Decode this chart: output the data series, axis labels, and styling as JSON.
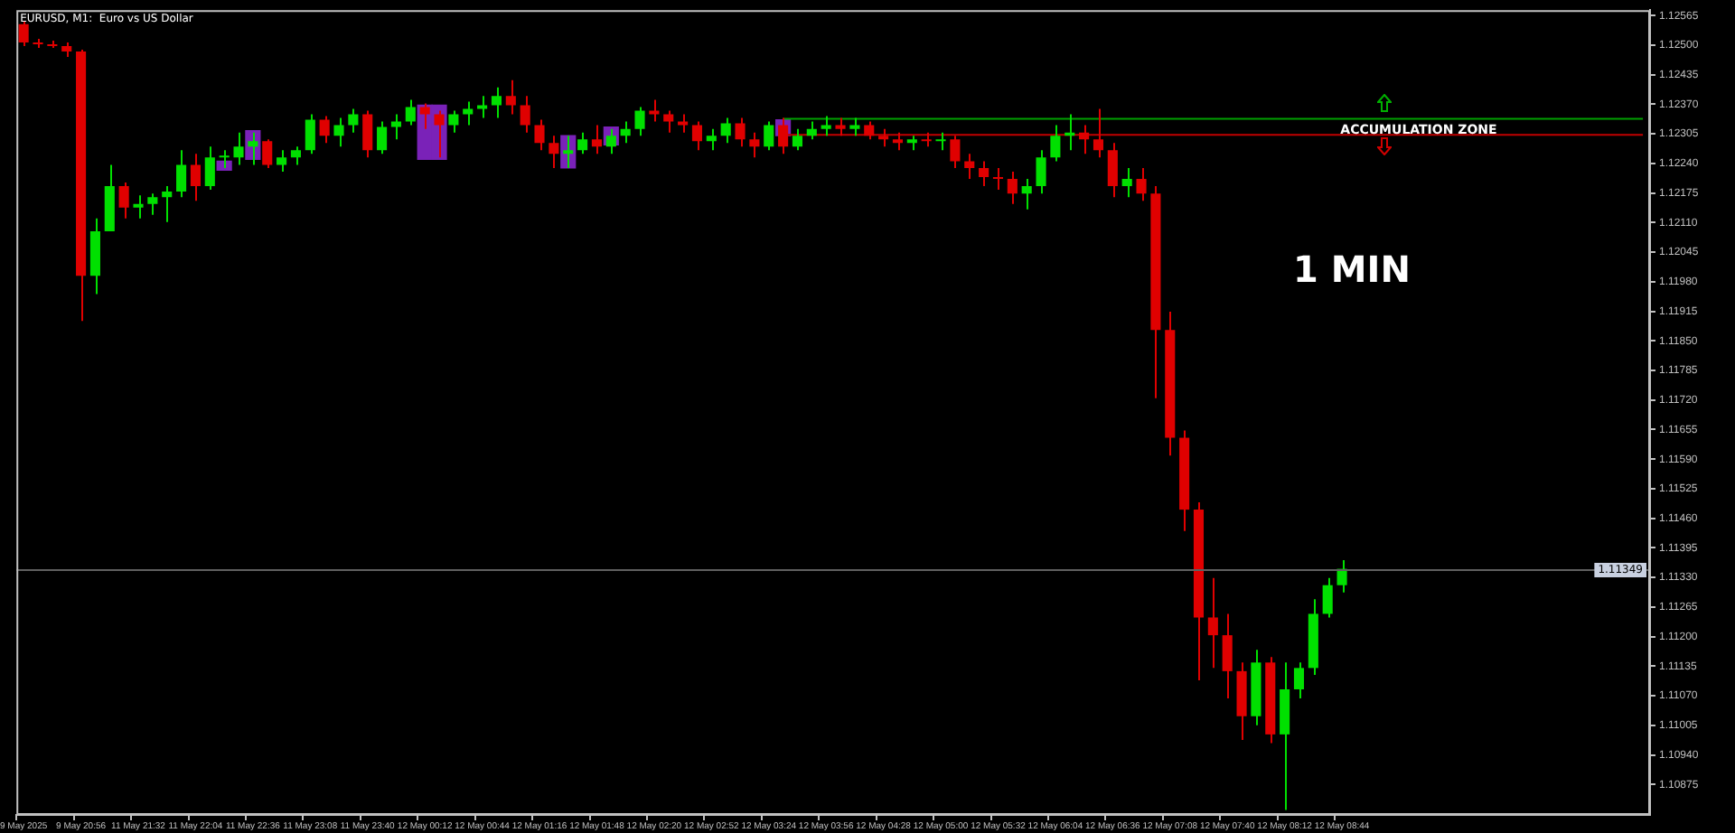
{
  "chart_data": {
    "type": "candlestick",
    "title": "EURUSD, M1:  Euro vs US Dollar",
    "categories": [
      "9 May 2025",
      null,
      null,
      null,
      "9 May 20:56",
      null,
      null,
      null,
      "11 May 21:32",
      null,
      null,
      null,
      "11 May 22:04",
      null,
      null,
      null,
      "11 May 22:36",
      null,
      null,
      null,
      "11 May 23:08",
      null,
      null,
      null,
      "11 May 23:40",
      null,
      null,
      null,
      "12 May 00:12",
      null,
      null,
      null,
      "12 May 00:44",
      null,
      null,
      null,
      "12 May 01:16",
      null,
      null,
      null,
      "12 May 01:48",
      null,
      null,
      null,
      "12 May 02:20",
      null,
      null,
      null,
      "12 May 02:52",
      null,
      null,
      null,
      "12 May 03:24",
      null,
      null,
      null,
      "12 May 03:56",
      null,
      null,
      null,
      "12 May 04:28",
      null,
      null,
      null,
      "12 May 05:00",
      null,
      null,
      null,
      "12 May 05:32",
      null,
      null,
      null,
      "12 May 06:04",
      null,
      null,
      null,
      "12 May 06:36",
      null,
      null,
      null,
      "12 May 07:08",
      null,
      null,
      null,
      "12 May 07:40",
      null,
      null,
      null,
      "12 May 08:12",
      null,
      null,
      null,
      "12 May 08:44",
      null,
      null,
      null,
      null,
      null,
      null,
      null,
      null,
      null,
      null,
      null,
      null,
      null,
      null,
      null,
      null,
      null,
      null,
      null,
      null,
      null
    ],
    "ohlc": [
      [
        1.12546,
        1.12553,
        1.12498,
        1.12506
      ],
      [
        1.12506,
        1.12514,
        1.12494,
        1.12502
      ],
      [
        1.12502,
        1.1251,
        1.12494,
        1.12498
      ],
      [
        1.12498,
        1.12506,
        1.12474,
        1.12486
      ],
      [
        1.12486,
        1.1249,
        1.11894,
        1.11993
      ],
      [
        1.11993,
        1.12119,
        1.11953,
        1.12091
      ],
      [
        1.12091,
        1.12237,
        1.12091,
        1.1219
      ],
      [
        1.1219,
        1.12198,
        1.12119,
        1.12143
      ],
      [
        1.12143,
        1.1217,
        1.12119,
        1.12151
      ],
      [
        1.12151,
        1.12174,
        1.12127,
        1.12166
      ],
      [
        1.12166,
        1.1219,
        1.12111,
        1.12178
      ],
      [
        1.12178,
        1.12269,
        1.12166,
        1.12237
      ],
      [
        1.12237,
        1.12261,
        1.12158,
        1.1219
      ],
      [
        1.1219,
        1.12277,
        1.12182,
        1.12253
      ],
      [
        1.12253,
        1.12269,
        1.1223,
        1.12253
      ],
      [
        1.12253,
        1.12308,
        1.12237,
        1.12277
      ],
      [
        1.12277,
        1.12308,
        1.12237,
        1.12289
      ],
      [
        1.12289,
        1.12293,
        1.1223,
        1.12237
      ],
      [
        1.12237,
        1.12269,
        1.12222,
        1.12253
      ],
      [
        1.12253,
        1.12277,
        1.12237,
        1.12269
      ],
      [
        1.12269,
        1.12348,
        1.12261,
        1.12336
      ],
      [
        1.12336,
        1.12344,
        1.12285,
        1.12301
      ],
      [
        1.12301,
        1.1234,
        1.12277,
        1.12324
      ],
      [
        1.12324,
        1.1236,
        1.12308,
        1.12348
      ],
      [
        1.12348,
        1.12356,
        1.12253,
        1.12269
      ],
      [
        1.12269,
        1.12332,
        1.12261,
        1.1232
      ],
      [
        1.1232,
        1.12348,
        1.12293,
        1.12332
      ],
      [
        1.12332,
        1.1238,
        1.12324,
        1.12364
      ],
      [
        1.12364,
        1.12372,
        1.12316,
        1.12348
      ],
      [
        1.12348,
        1.12356,
        1.12253,
        1.12324
      ],
      [
        1.12324,
        1.12356,
        1.12308,
        1.12348
      ],
      [
        1.12348,
        1.12376,
        1.12324,
        1.1236
      ],
      [
        1.1236,
        1.12388,
        1.1234,
        1.12368
      ],
      [
        1.12368,
        1.12407,
        1.1234,
        1.12388
      ],
      [
        1.12388,
        1.12423,
        1.12348,
        1.12368
      ],
      [
        1.12368,
        1.12388,
        1.12308,
        1.12324
      ],
      [
        1.12324,
        1.12336,
        1.12269,
        1.12285
      ],
      [
        1.12285,
        1.12301,
        1.1223,
        1.12261
      ],
      [
        1.12261,
        1.12301,
        1.1223,
        1.12269
      ],
      [
        1.12269,
        1.12308,
        1.12261,
        1.12293
      ],
      [
        1.12293,
        1.12324,
        1.12261,
        1.12277
      ],
      [
        1.12277,
        1.12316,
        1.12261,
        1.12301
      ],
      [
        1.12301,
        1.12332,
        1.12285,
        1.12316
      ],
      [
        1.12316,
        1.12364,
        1.12301,
        1.12356
      ],
      [
        1.12356,
        1.1238,
        1.12332,
        1.12348
      ],
      [
        1.12348,
        1.12356,
        1.12308,
        1.12332
      ],
      [
        1.12332,
        1.12348,
        1.12308,
        1.12324
      ],
      [
        1.12324,
        1.12332,
        1.12269,
        1.12289
      ],
      [
        1.12289,
        1.12316,
        1.12269,
        1.12301
      ],
      [
        1.12301,
        1.1234,
        1.12285,
        1.12328
      ],
      [
        1.12328,
        1.1234,
        1.12277,
        1.12293
      ],
      [
        1.12293,
        1.12308,
        1.12253,
        1.12277
      ],
      [
        1.12277,
        1.12332,
        1.12269,
        1.12324
      ],
      [
        1.12324,
        1.1234,
        1.12261,
        1.12277
      ],
      [
        1.12277,
        1.12316,
        1.12269,
        1.12301
      ],
      [
        1.12301,
        1.12332,
        1.12293,
        1.12316
      ],
      [
        1.12316,
        1.12344,
        1.12301,
        1.12324
      ],
      [
        1.12324,
        1.1234,
        1.12301,
        1.12316
      ],
      [
        1.12316,
        1.1234,
        1.12301,
        1.12324
      ],
      [
        1.12324,
        1.12332,
        1.12293,
        1.12301
      ],
      [
        1.12301,
        1.12316,
        1.12277,
        1.12293
      ],
      [
        1.12293,
        1.12308,
        1.12269,
        1.12285
      ],
      [
        1.12285,
        1.12301,
        1.12269,
        1.12293
      ],
      [
        1.12293,
        1.12308,
        1.12277,
        1.12289
      ],
      [
        1.12289,
        1.12308,
        1.12269,
        1.12293
      ],
      [
        1.12293,
        1.12301,
        1.1223,
        1.12245
      ],
      [
        1.12245,
        1.12261,
        1.12206,
        1.1223
      ],
      [
        1.1223,
        1.12245,
        1.1219,
        1.1221
      ],
      [
        1.1221,
        1.1223,
        1.12182,
        1.12206
      ],
      [
        1.12206,
        1.12222,
        1.12151,
        1.12174
      ],
      [
        1.12174,
        1.12206,
        1.12139,
        1.1219
      ],
      [
        1.1219,
        1.12269,
        1.12174,
        1.12253
      ],
      [
        1.12253,
        1.12324,
        1.12245,
        1.12301
      ],
      [
        1.12301,
        1.12348,
        1.12269,
        1.12308
      ],
      [
        1.12308,
        1.12324,
        1.12261,
        1.12293
      ],
      [
        1.12293,
        1.1236,
        1.12253,
        1.12269
      ],
      [
        1.12269,
        1.12285,
        1.12166,
        1.1219
      ],
      [
        1.1219,
        1.1223,
        1.12166,
        1.12206
      ],
      [
        1.12206,
        1.1223,
        1.12158,
        1.12174
      ],
      [
        1.12174,
        1.1219,
        1.11724,
        1.11874
      ],
      [
        1.11874,
        1.11914,
        1.11598,
        1.11637
      ],
      [
        1.11637,
        1.11653,
        1.11432,
        1.11479
      ],
      [
        1.11479,
        1.11495,
        1.11104,
        1.11242
      ],
      [
        1.11242,
        1.11329,
        1.11131,
        1.11203
      ],
      [
        1.11203,
        1.1125,
        1.11064,
        1.11124
      ],
      [
        1.11124,
        1.11143,
        1.10973,
        1.11025
      ],
      [
        1.11025,
        1.11171,
        1.11005,
        1.11143
      ],
      [
        1.11143,
        1.11155,
        1.10966,
        1.10985
      ],
      [
        1.10985,
        1.11143,
        1.10819,
        1.11084
      ],
      [
        1.11084,
        1.11143,
        1.11064,
        1.11131
      ],
      [
        1.11131,
        1.11282,
        1.11116,
        1.1125
      ],
      [
        1.1125,
        1.11329,
        1.11242,
        1.11313
      ],
      [
        1.11313,
        1.11368,
        1.11297,
        1.11349
      ],
      null,
      null,
      null,
      null,
      null,
      null,
      null,
      null,
      null,
      null,
      null,
      null,
      null,
      null,
      null,
      null,
      null,
      null,
      null,
      null,
      null
    ],
    "colors": [
      "#e00000",
      "#e00000",
      "#e00000",
      "#e00000",
      "#e00000",
      "#00e000",
      "#00e000",
      "#e00000",
      "#00e000",
      "#00e000",
      "#00e000",
      "#00e000",
      "#e00000",
      "#00e000",
      "#00e000",
      "#00e000",
      "#00e000",
      "#e00000",
      "#00e000",
      "#00e000",
      "#00e000",
      "#e00000",
      "#00e000",
      "#00e000",
      "#e00000",
      "#00e000",
      "#00e000",
      "#00e000",
      "#e00000",
      "#e00000",
      "#00e000",
      "#00e000",
      "#00e000",
      "#00e000",
      "#e00000",
      "#e00000",
      "#e00000",
      "#e00000",
      "#00e000",
      "#00e000",
      "#e00000",
      "#00e000",
      "#00e000",
      "#00e000",
      "#e00000",
      "#e00000",
      "#e00000",
      "#e00000",
      "#00e000",
      "#00e000",
      "#e00000",
      "#e00000",
      "#00e000",
      "#e00000",
      "#00e000",
      "#00e000",
      "#00e000",
      "#e00000",
      "#00e000",
      "#e00000",
      "#e00000",
      "#e00000",
      "#00e000",
      "#e00000",
      "#00e000",
      "#e00000",
      "#e00000",
      "#e00000",
      "#e00000",
      "#e00000",
      "#00e000",
      "#00e000",
      "#00e000",
      "#00e000",
      "#e00000",
      "#e00000",
      "#e00000",
      "#00e000",
      "#e00000",
      "#e00000",
      "#e00000",
      "#e00000",
      "#e00000",
      "#e00000",
      "#e00000",
      "#e00000",
      "#00e000",
      "#e00000",
      "#00e000",
      "#00e000",
      "#00e000",
      "#00e000",
      "#00e000",
      null,
      null,
      null,
      null,
      null,
      null,
      null,
      null,
      null,
      null,
      null,
      null,
      null,
      null,
      null,
      null,
      null,
      null,
      null,
      null,
      null
    ],
    "series": [
      {
        "type": "bar",
        "color": "#7a22b8",
        "base": [
          null,
          null,
          null,
          null,
          null,
          null,
          null,
          null,
          null,
          null,
          null,
          null,
          null,
          null,
          1.12225,
          null,
          1.12249,
          null,
          null,
          null,
          null,
          null,
          null,
          null,
          null,
          null,
          null,
          null,
          1.12249,
          1.12249,
          null,
          null,
          null,
          null,
          null,
          null,
          null,
          null,
          1.1223,
          null,
          null,
          1.12281,
          null,
          null,
          null,
          null,
          null,
          null,
          null,
          null,
          null,
          null,
          null,
          1.12301,
          null,
          null,
          null,
          null,
          null,
          null,
          null,
          null,
          null,
          null,
          null,
          null,
          null,
          null,
          null,
          null,
          null,
          null,
          null,
          null,
          null,
          null,
          null,
          null,
          null,
          null,
          null,
          null,
          null,
          null,
          null,
          null,
          null,
          null,
          null,
          null,
          null,
          null,
          null,
          null,
          null,
          null,
          null,
          null,
          null,
          null,
          null,
          null,
          null,
          null,
          null,
          null,
          null,
          null,
          null,
          null,
          null,
          null,
          null,
          null
        ],
        "values": [
          null,
          null,
          null,
          null,
          null,
          null,
          null,
          null,
          null,
          null,
          null,
          null,
          null,
          null,
          0.0002,
          null,
          0.00063,
          null,
          null,
          null,
          null,
          null,
          null,
          null,
          null,
          null,
          null,
          null,
          0.00119,
          0.00119,
          null,
          null,
          null,
          null,
          null,
          null,
          null,
          null,
          0.00071,
          null,
          null,
          0.00039,
          null,
          null,
          null,
          null,
          null,
          null,
          null,
          null,
          null,
          null,
          null,
          0.00035,
          null,
          null,
          null,
          null,
          null,
          null,
          null,
          null,
          null,
          null,
          null,
          null,
          null,
          null,
          null,
          null,
          null,
          null,
          null,
          null,
          null,
          null,
          null,
          null,
          null,
          null,
          null,
          null,
          null,
          null,
          null,
          null,
          null,
          null,
          null,
          null,
          null,
          null,
          null,
          null,
          null,
          null,
          null,
          null,
          null,
          null,
          null,
          null,
          null,
          null,
          null,
          null,
          null,
          null,
          null,
          null,
          null,
          null,
          null,
          null
        ]
      },
      {
        "type": "line",
        "color": "#00a000",
        "values": [
          null,
          null,
          null,
          null,
          null,
          null,
          null,
          null,
          null,
          null,
          null,
          null,
          null,
          null,
          null,
          null,
          null,
          null,
          null,
          null,
          null,
          null,
          null,
          null,
          null,
          null,
          null,
          null,
          null,
          null,
          null,
          null,
          null,
          null,
          null,
          null,
          null,
          null,
          null,
          null,
          null,
          null,
          null,
          null,
          null,
          null,
          null,
          null,
          null,
          null,
          null,
          null,
          null,
          1.12338,
          1.12338,
          1.12338,
          1.12338,
          1.12338,
          1.12338,
          1.12338,
          1.12338,
          1.12338,
          1.12338,
          1.12338,
          1.12338,
          1.12338,
          1.12338,
          1.12338,
          1.12338,
          1.12338,
          1.12338,
          1.12338,
          1.12338,
          1.12338,
          1.12338,
          1.12338,
          1.12338,
          1.12338,
          1.12338,
          1.12338,
          1.12338,
          1.12338,
          1.12338,
          1.12338,
          1.12338,
          1.12338,
          1.12338,
          1.12338,
          1.12338,
          1.12338,
          1.12338,
          1.12338,
          1.12338,
          1.12338,
          1.12338,
          1.12338,
          1.12338,
          1.12338,
          1.12338,
          1.12338,
          1.12338,
          1.12338,
          1.12338,
          1.12338,
          1.12338,
          1.12338,
          1.12338,
          1.12338,
          1.12338,
          1.12338,
          1.12338,
          1.12338,
          1.12338,
          1.12338
        ]
      },
      {
        "type": "line",
        "color": "#c00000",
        "values": [
          null,
          null,
          null,
          null,
          null,
          null,
          null,
          null,
          null,
          null,
          null,
          null,
          null,
          null,
          null,
          null,
          null,
          null,
          null,
          null,
          null,
          null,
          null,
          null,
          null,
          null,
          null,
          null,
          null,
          null,
          null,
          null,
          null,
          null,
          null,
          null,
          null,
          null,
          null,
          null,
          null,
          null,
          null,
          null,
          null,
          null,
          null,
          null,
          null,
          null,
          null,
          null,
          null,
          1.12303,
          1.12303,
          1.12303,
          1.12303,
          1.12303,
          1.12303,
          1.12303,
          1.12303,
          1.12303,
          1.12303,
          1.12303,
          1.12303,
          1.12303,
          1.12303,
          1.12303,
          1.12303,
          1.12303,
          1.12303,
          1.12303,
          1.12303,
          1.12303,
          1.12303,
          1.12303,
          1.12303,
          1.12303,
          1.12303,
          1.12303,
          1.12303,
          1.12303,
          1.12303,
          1.12303,
          1.12303,
          1.12303,
          1.12303,
          1.12303,
          1.12303,
          1.12303,
          1.12303,
          1.12303,
          1.12303,
          1.12303,
          1.12303,
          1.12303,
          1.12303,
          1.12303,
          1.12303,
          1.12303,
          1.12303,
          1.12303,
          1.12303,
          1.12303,
          1.12303,
          1.12303,
          1.12303,
          1.12303,
          1.12303,
          1.12303,
          1.12303,
          1.12303,
          1.12303,
          1.12303
        ]
      }
    ],
    "ylim": [
      1.10808,
      1.12577
    ],
    "yticks": [
      1.12565,
      {
        "value": 1.125,
        "label": "1.12500"
      },
      1.12435,
      {
        "value": 1.1237,
        "label": "1.12370"
      },
      1.12305,
      {
        "value": 1.1224,
        "label": "1.12240"
      },
      1.12175,
      {
        "value": 1.1211,
        "label": "1.12110"
      },
      1.12045,
      {
        "value": 1.1198,
        "label": "1.11980"
      },
      1.11915,
      {
        "value": 1.1185,
        "label": "1.11850"
      },
      1.11785,
      {
        "value": 1.1172,
        "label": "1.11720"
      },
      1.11655,
      {
        "value": 1.1159,
        "label": "1.11590"
      },
      1.11525,
      {
        "value": 1.1146,
        "label": "1.11460"
      },
      1.11395,
      {
        "value": 1.1133,
        "label": "1.11330"
      },
      1.11265,
      {
        "value": 1.112,
        "label": "1.11200"
      },
      1.11135,
      {
        "value": 1.1107,
        "label": "1.11070"
      },
      1.11005,
      {
        "value": 1.1094,
        "label": "1.10940"
      },
      1.10875
    ],
    "ref_lines": [
      {
        "axis": "y",
        "value": 1.11349,
        "label": "1.11349",
        "color": "#606060"
      }
    ],
    "annotations": [
      "ACCUMULATION ZONE",
      "1 MIN"
    ],
    "legend": false,
    "grid": false
  }
}
